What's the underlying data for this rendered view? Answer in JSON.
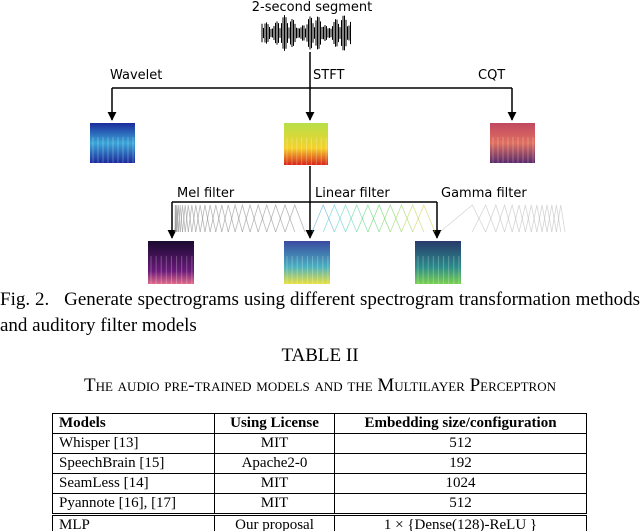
{
  "figure": {
    "segment_label": "2-second segment",
    "branches": [
      "Wavelet",
      "STFT",
      "CQT"
    ],
    "filters": [
      "Mel filter",
      "Linear filter",
      "Gamma filter"
    ]
  },
  "caption": {
    "label": "Fig. 2.",
    "text": "Generate spectrograms using different spectrogram transformation methods and auditory filter models"
  },
  "table": {
    "number": "TABLE II",
    "title": "The audio pre-trained models and the Multilayer Perceptron",
    "header": [
      "Models",
      "Using License",
      "Embedding size/configuration"
    ],
    "rows": [
      [
        "Whisper [13]",
        "MIT",
        "512"
      ],
      [
        "SpeechBrain [15]",
        "Apache2-0",
        "192"
      ],
      [
        "SeamLess [14]",
        "MIT",
        "1024"
      ],
      [
        "Pyannote [16], [17]",
        "MIT",
        "512"
      ],
      [
        "MLP",
        "Our proposal",
        "1 × {Dense(128)-ReLU }"
      ]
    ]
  }
}
